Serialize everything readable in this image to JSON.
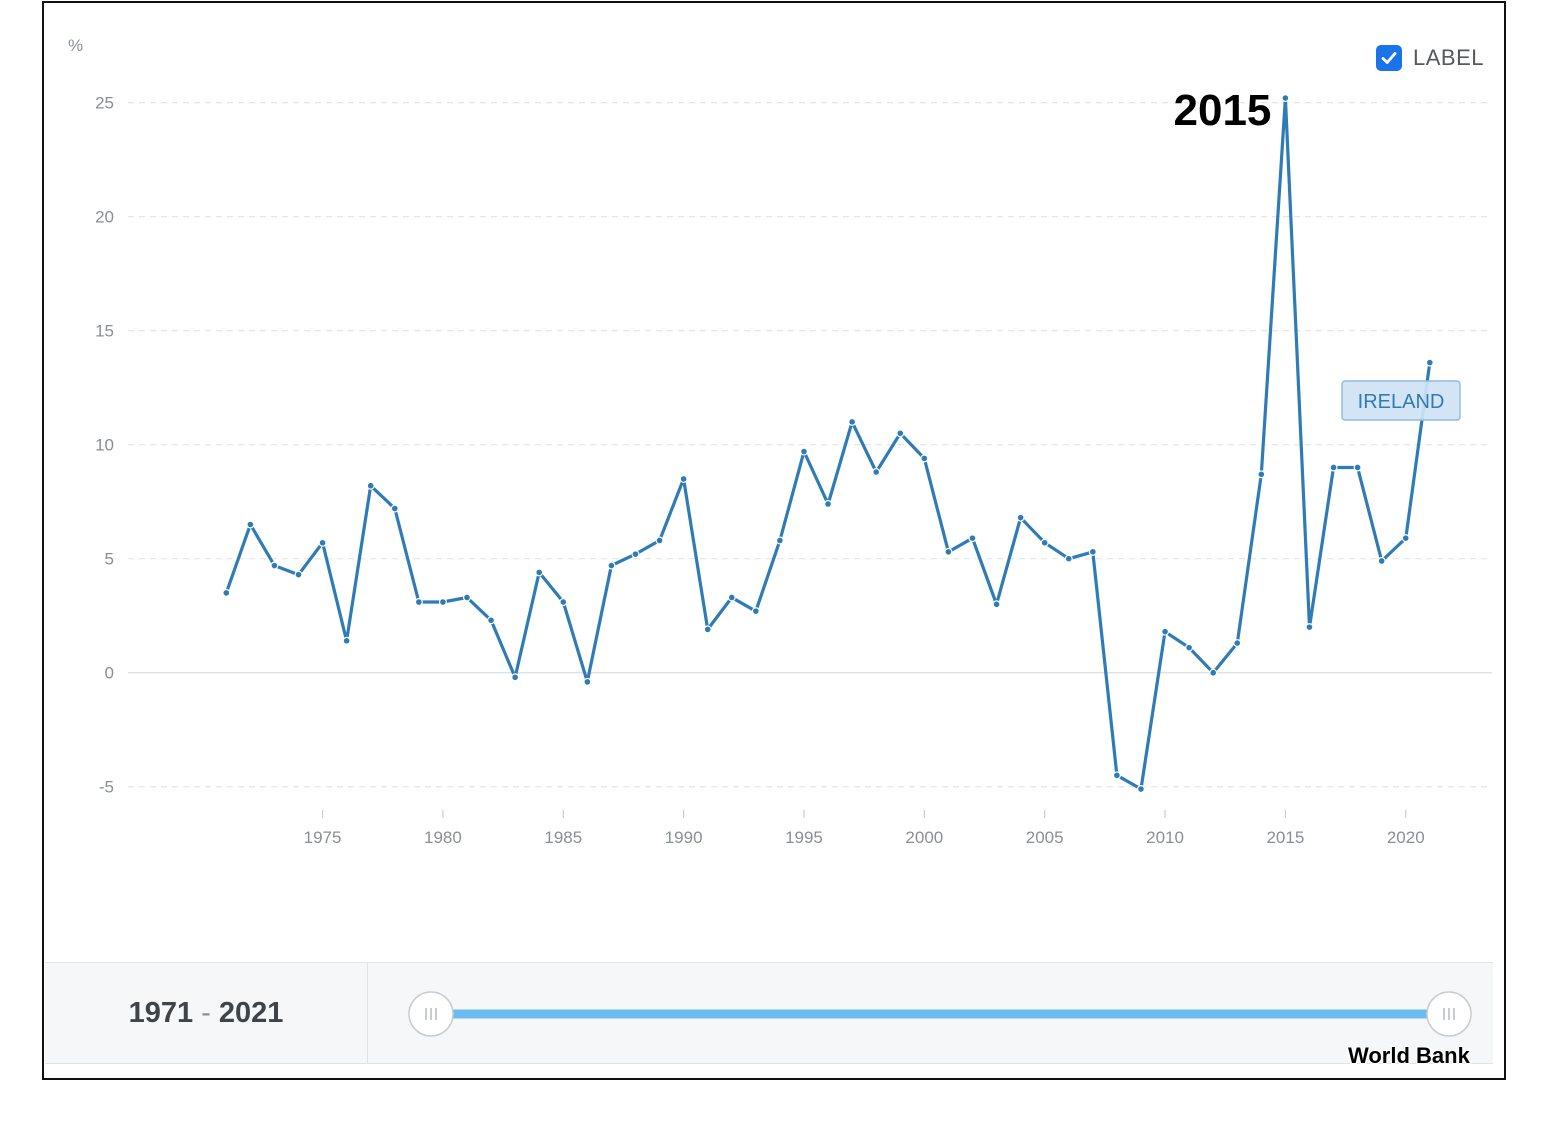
{
  "chart_data": {
    "type": "line",
    "unit_label": "%",
    "series": [
      {
        "name": "IRELAND",
        "color": "#2f7bb6",
        "x": [
          1971,
          1972,
          1973,
          1974,
          1975,
          1976,
          1977,
          1978,
          1979,
          1980,
          1981,
          1982,
          1983,
          1984,
          1985,
          1986,
          1987,
          1988,
          1989,
          1990,
          1991,
          1992,
          1993,
          1994,
          1995,
          1996,
          1997,
          1998,
          1999,
          2000,
          2001,
          2002,
          2003,
          2004,
          2005,
          2006,
          2007,
          2008,
          2009,
          2010,
          2011,
          2012,
          2013,
          2014,
          2015,
          2016,
          2017,
          2018,
          2019,
          2020,
          2021
        ],
        "values": [
          3.5,
          6.5,
          4.7,
          4.3,
          5.7,
          1.4,
          8.2,
          7.2,
          3.1,
          3.1,
          3.3,
          2.3,
          -0.2,
          4.4,
          3.1,
          -0.4,
          4.7,
          5.2,
          5.8,
          8.5,
          1.9,
          3.3,
          2.7,
          5.8,
          9.7,
          7.4,
          11.0,
          8.8,
          10.5,
          9.4,
          5.3,
          5.9,
          3.0,
          6.8,
          5.7,
          5.0,
          5.3,
          -4.5,
          -5.1,
          1.8,
          1.1,
          0.0,
          1.3,
          8.7,
          25.2,
          2.0,
          9.0,
          9.0,
          4.9,
          5.9,
          13.6
        ]
      }
    ],
    "yticks": [
      "25",
      "20",
      "15",
      "10",
      "5",
      "0",
      "-5"
    ],
    "ytick_values": [
      25,
      20,
      15,
      10,
      5,
      0,
      -5
    ],
    "xticks": [
      "1975",
      "1980",
      "1985",
      "1990",
      "1995",
      "2000",
      "2005",
      "2010",
      "2015",
      "2020"
    ],
    "xtick_values": [
      1975,
      1980,
      1985,
      1990,
      1995,
      2000,
      2005,
      2010,
      2015,
      2020
    ],
    "xlim": [
      1967,
      2023.5
    ],
    "ylim": [
      -8.3,
      29.5
    ],
    "grid": true,
    "annotation": {
      "text": "2015",
      "x": 2015,
      "y": 25.2
    },
    "series_label": "IRELAND"
  },
  "controls": {
    "label_toggle": "LABEL",
    "label_checked": true,
    "range_start": "1971",
    "range_separator": "-",
    "range_end": "2021",
    "slider_accent": "#6cbcf0"
  },
  "source_text": "World Bank"
}
